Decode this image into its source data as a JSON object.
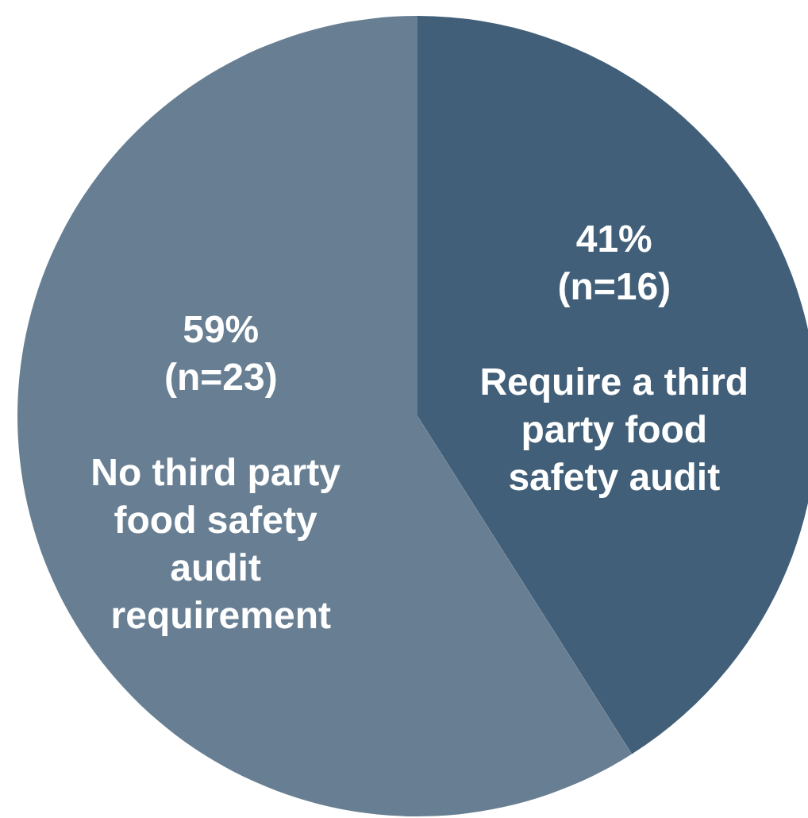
{
  "chart_data": {
    "type": "pie",
    "categories": [
      "Require a third party food safety audit",
      "No third party food safety audit requirement"
    ],
    "values": [
      41,
      59
    ],
    "colors": [
      "#415f78",
      "#687f93"
    ],
    "value_labels": [
      "41%\n(n=16)",
      "59%\n(n=23)"
    ],
    "legend": false
  }
}
